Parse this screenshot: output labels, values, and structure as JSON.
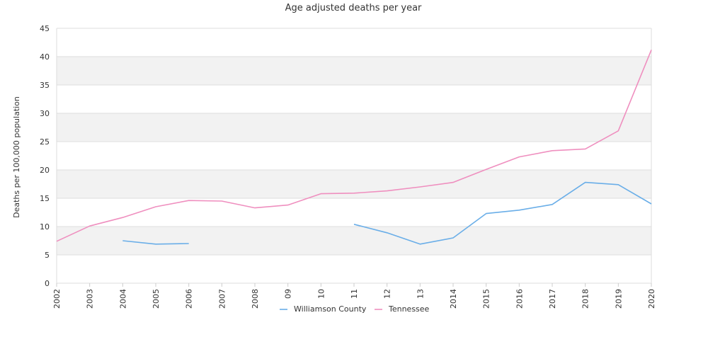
{
  "chart_data": {
    "type": "line",
    "title": "Age adjusted deaths per year",
    "xlabel": "",
    "ylabel": "Deaths per 100,000 population",
    "ylim": [
      0,
      45
    ],
    "yticks": [
      "0",
      "5",
      "10",
      "15",
      "20",
      "25",
      "30",
      "35",
      "40",
      "45"
    ],
    "categories": [
      "2002",
      "2003",
      "2004",
      "2005",
      "2006",
      "2007",
      "2008",
      "09",
      "10",
      "11",
      "12",
      "13",
      "2014",
      "2015",
      "2016",
      "2017",
      "2018",
      "2019",
      "2020"
    ],
    "grid": "alternating horizontal bands",
    "legend_position": "bottom-center",
    "series": [
      {
        "name": "Williamson County",
        "color": "#6aaee8",
        "values": [
          null,
          null,
          7.5,
          6.9,
          7.0,
          null,
          null,
          null,
          null,
          10.4,
          8.9,
          6.9,
          8.0,
          12.3,
          12.9,
          13.9,
          17.8,
          17.4,
          14.0
        ]
      },
      {
        "name": "Tennessee",
        "color": "#ef8fbf",
        "values": [
          7.4,
          10.1,
          11.6,
          13.5,
          14.6,
          14.5,
          13.3,
          13.8,
          15.8,
          15.9,
          16.3,
          17.0,
          17.8,
          20.1,
          22.3,
          23.4,
          23.7,
          26.9,
          41.2
        ]
      }
    ]
  }
}
